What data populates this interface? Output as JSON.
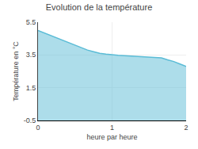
{
  "chart_data": {
    "type": "area",
    "title": "Evolution de la température",
    "x_label": "heure par heure",
    "y_label": "Température en °C",
    "x": [
      0.0,
      0.083,
      0.167,
      0.25,
      0.333,
      0.417,
      0.5,
      0.583,
      0.667,
      0.75,
      0.833,
      0.917,
      1.0,
      1.083,
      1.167,
      1.25,
      1.333,
      1.417,
      1.5,
      1.583,
      1.667,
      1.75,
      1.833,
      1.917,
      2.0
    ],
    "values": [
      5.0,
      4.85,
      4.7,
      4.55,
      4.4,
      4.25,
      4.1,
      3.95,
      3.8,
      3.7,
      3.6,
      3.55,
      3.5,
      3.48,
      3.46,
      3.44,
      3.42,
      3.4,
      3.38,
      3.35,
      3.32,
      3.2,
      3.1,
      2.95,
      2.8
    ],
    "color": "#5bbcd6",
    "xlim": [
      0,
      2
    ],
    "xticks": [
      0,
      1,
      2
    ],
    "ylim": [
      -0.5,
      5.5
    ],
    "yticks": [
      -0.5,
      1.5,
      3.5,
      5.5
    ],
    "grid": true
  }
}
